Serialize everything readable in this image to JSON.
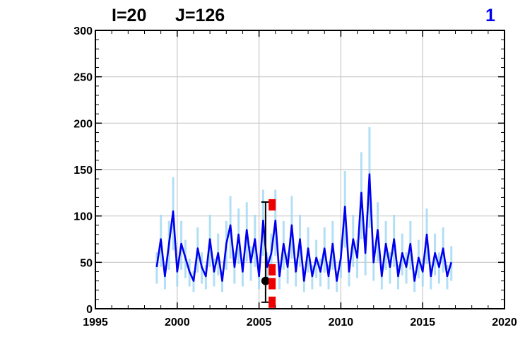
{
  "header": {
    "i_label": "I=20",
    "j_label": "J=126",
    "panel_number": "1",
    "panel_number_color": "#0000ee"
  },
  "chart_data": {
    "type": "line",
    "title": "",
    "xlabel": "",
    "ylabel": "",
    "xlim": [
      1995,
      2020
    ],
    "ylim": [
      0,
      300
    ],
    "x_ticks": [
      "1995",
      "2000",
      "2005",
      "2010",
      "2015",
      "2020"
    ],
    "y_ticks": [
      "0",
      "50",
      "100",
      "150",
      "200",
      "250",
      "300"
    ],
    "grid": true,
    "colors": {
      "series": "#0000ee",
      "spread": "#9fd8f5",
      "markers": "#ee0000",
      "point": "#000000"
    },
    "series": [
      {
        "role": "line",
        "x": [
          1998.75,
          1999.0,
          1999.25,
          1999.5,
          1999.75,
          2000.0,
          2000.25,
          2000.5,
          2000.75,
          2001.0,
          2001.25,
          2001.5,
          2001.75,
          2002.0,
          2002.25,
          2002.5,
          2002.75,
          2003.0,
          2003.25,
          2003.5,
          2003.75,
          2004.0,
          2004.25,
          2004.5,
          2004.75,
          2005.0,
          2005.25,
          2005.5,
          2005.75,
          2006.0,
          2006.25,
          2006.5,
          2006.75,
          2007.0,
          2007.25,
          2007.5,
          2007.75,
          2008.0,
          2008.25,
          2008.5,
          2008.75,
          2009.0,
          2009.25,
          2009.5,
          2009.75,
          2010.0,
          2010.25,
          2010.5,
          2010.75,
          2011.0,
          2011.25,
          2011.5,
          2011.75,
          2012.0,
          2012.25,
          2012.5,
          2012.75,
          2013.0,
          2013.25,
          2013.5,
          2013.75,
          2014.0,
          2014.25,
          2014.5,
          2014.75,
          2015.0,
          2015.25,
          2015.5,
          2015.75,
          2016.0,
          2016.25,
          2016.5,
          2016.75
        ],
        "y": [
          45,
          75,
          35,
          70,
          105,
          40,
          70,
          55,
          40,
          30,
          65,
          45,
          35,
          75,
          40,
          60,
          30,
          70,
          90,
          45,
          80,
          40,
          85,
          50,
          75,
          35,
          95,
          45,
          60,
          95,
          35,
          70,
          45,
          90,
          40,
          75,
          30,
          65,
          35,
          55,
          40,
          65,
          35,
          70,
          30,
          55,
          110,
          40,
          75,
          55,
          125,
          60,
          145,
          50,
          85,
          35,
          70,
          45,
          75,
          35,
          60,
          45,
          70,
          30,
          55,
          40,
          80,
          35,
          60,
          45,
          65,
          35,
          50
        ]
      }
    ],
    "markers": {
      "red_squares": [
        {
          "x": 2005.8,
          "y": 112
        },
        {
          "x": 2005.8,
          "y": 42
        },
        {
          "x": 2005.8,
          "y": 27
        },
        {
          "x": 2005.8,
          "y": 7
        }
      ],
      "point": {
        "x": 2005.4,
        "y": 30,
        "y_low": 7,
        "y_high": 115
      }
    }
  }
}
